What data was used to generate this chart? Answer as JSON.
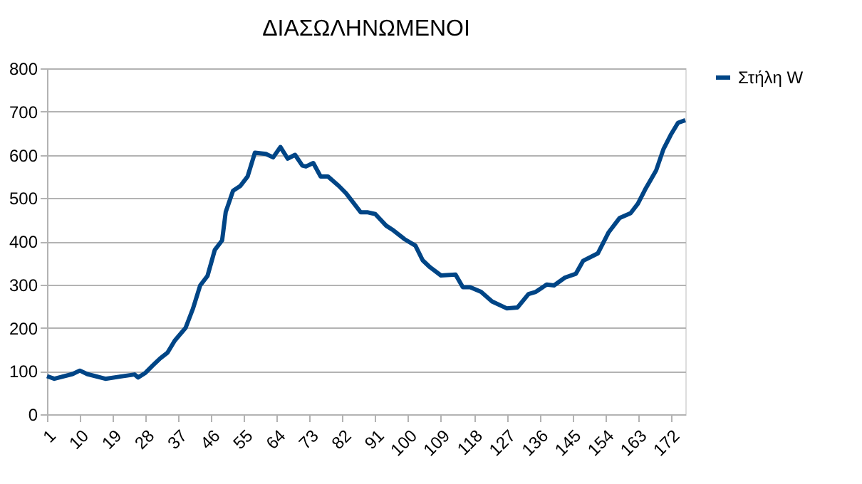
{
  "chart_data": {
    "type": "line",
    "title": "ΔΙΑΣΩΛΗΝΩΜΕΝΟΙ",
    "x": [
      1,
      3,
      8,
      10,
      12,
      17,
      21,
      25,
      26,
      28,
      30,
      32,
      34,
      36,
      39,
      41,
      43,
      45,
      47,
      49,
      50,
      52,
      54,
      56,
      58,
      61,
      63,
      65,
      67,
      69,
      71,
      72,
      74,
      76,
      78,
      81,
      83,
      85,
      87,
      89,
      91,
      94,
      96,
      99,
      102,
      104,
      106,
      109,
      113,
      115,
      117,
      120,
      123,
      127,
      130,
      133,
      135,
      138,
      140,
      143,
      146,
      148,
      152,
      155,
      158,
      161,
      163,
      165,
      168,
      170,
      172,
      174,
      176
    ],
    "series": [
      {
        "name": "Στήλη W",
        "color": "#004586",
        "values": [
          88,
          82,
          93,
          101,
          93,
          82,
          87,
          92,
          85,
          96,
          113,
          129,
          142,
          170,
          200,
          244,
          298,
          320,
          380,
          402,
          468,
          517,
          528,
          550,
          605,
          602,
          594,
          618,
          591,
          600,
          575,
          573,
          581,
          550,
          550,
          528,
          511,
          489,
          467,
          467,
          463,
          436,
          425,
          405,
          390,
          356,
          340,
          321,
          323,
          294,
          294,
          283,
          261,
          245,
          247,
          278,
          283,
          300,
          298,
          316,
          325,
          355,
          372,
          421,
          454,
          465,
          487,
          520,
          564,
          613,
          646,
          674,
          680
        ]
      }
    ],
    "xlim": [
      1,
      176
    ],
    "xticks": [
      1,
      10,
      19,
      28,
      37,
      46,
      55,
      64,
      73,
      82,
      91,
      100,
      109,
      118,
      127,
      136,
      145,
      154,
      163,
      172
    ],
    "ylim": [
      0,
      800
    ],
    "yticks": [
      0,
      100,
      200,
      300,
      400,
      500,
      600,
      700,
      800
    ],
    "grid": "y",
    "legend": "right",
    "marker": "none",
    "line_style": "solid"
  }
}
